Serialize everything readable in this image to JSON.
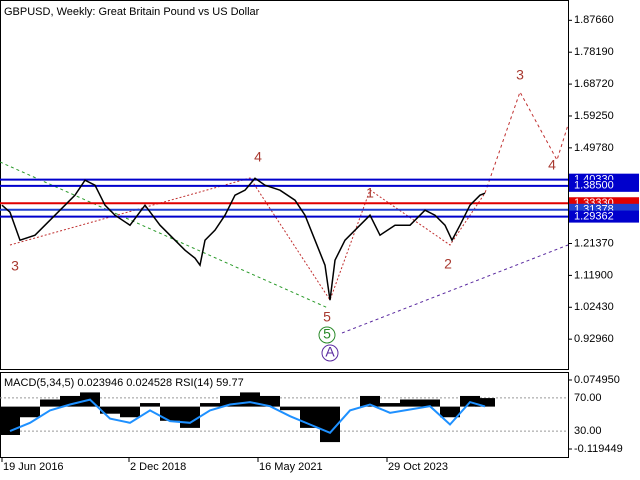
{
  "chart_data": [
    {
      "type": "line",
      "title": "GBPUSD, Weekly:  Great Britain Pound vs US Dollar",
      "color": "#000000",
      "x": [
        2,
        10,
        20,
        35,
        45,
        55,
        65,
        75,
        85,
        95,
        105,
        115,
        130,
        145,
        160,
        175,
        185,
        195,
        200,
        205,
        215,
        225,
        235,
        245,
        255,
        265,
        280,
        295,
        305,
        315,
        325,
        330,
        335,
        345,
        355,
        370,
        380,
        395,
        410,
        425,
        435,
        445,
        452,
        460,
        470,
        480,
        485
      ],
      "values": [
        1.3274,
        1.3066,
        1.2235,
        1.2383,
        1.268,
        1.2977,
        1.3274,
        1.3571,
        1.4016,
        1.3868,
        1.3274,
        1.2977,
        1.268,
        1.3274,
        1.268,
        1.2235,
        1.1938,
        1.17,
        1.1493,
        1.2235,
        1.2532,
        1.2977,
        1.3571,
        1.3719,
        1.4075,
        1.3868,
        1.3719,
        1.3422,
        1.2977,
        1.2235,
        1.1493,
        1.0454,
        1.1641,
        1.2235,
        1.2532,
        1.2977,
        1.2383,
        1.268,
        1.268,
        1.3125,
        1.2977,
        1.268,
        1.2235,
        1.268,
        1.3274,
        1.3571,
        1.363
      ],
      "xlim": [
        0,
        568
      ],
      "ylim": [
        0.838,
        1.931
      ],
      "yticks": [
        {
          "value": 1.8766,
          "label": "1.87660"
        },
        {
          "value": 1.7819,
          "label": "1.78190"
        },
        {
          "value": 1.6872,
          "label": "1.68720"
        },
        {
          "value": 1.5925,
          "label": "1.59250"
        },
        {
          "value": 1.4978,
          "label": "1.49780"
        },
        {
          "value": 1.2137,
          "label": "1.21370"
        },
        {
          "value": 1.119,
          "label": "1.11900"
        },
        {
          "value": 1.0243,
          "label": "1.02430"
        },
        {
          "value": 0.9296,
          "label": "0.92960"
        }
      ],
      "levels": [
        {
          "value": 1.4033,
          "label": "1.40330",
          "color": "#0000cc"
        },
        {
          "value": 1.385,
          "label": "1.38500",
          "color": "#0000cc"
        },
        {
          "value": 1.3333,
          "label": "1.33330",
          "color": "#e00000"
        },
        {
          "value": 1.31378,
          "label": "1.31378",
          "color": "#2040d0"
        },
        {
          "value": 1.29362,
          "label": "1.29362",
          "color": "#0000cc"
        }
      ],
      "annotations": [
        {
          "text": "3",
          "color": "#a83a30"
        },
        {
          "text": "4",
          "color": "#a83a30"
        },
        {
          "text": "1",
          "color": "#a83a30"
        },
        {
          "text": "2",
          "color": "#a83a30"
        },
        {
          "text": "5",
          "color": "#a83a30"
        },
        {
          "text": "5",
          "color": "#2a8a2a"
        },
        {
          "text": "A",
          "color": "#5a2aa0"
        },
        {
          "text": "3",
          "color": "#a83a30"
        },
        {
          "text": "4",
          "color": "#a83a30"
        }
      ]
    },
    {
      "type": "macd",
      "title": "MACD(5,34,5) 0.023946 0.024528 RSI(14) 59.77",
      "x": [
        10,
        30,
        50,
        70,
        90,
        110,
        130,
        150,
        170,
        190,
        210,
        230,
        250,
        270,
        290,
        310,
        330,
        350,
        370,
        390,
        410,
        430,
        450,
        470,
        485
      ],
      "macd": {
        "color": "#000000",
        "axis": "y2",
        "values": [
          -0.08,
          -0.03,
          0.02,
          0.03,
          0.04,
          -0.02,
          -0.03,
          0.01,
          -0.04,
          -0.06,
          0.01,
          0.03,
          0.04,
          0.03,
          -0.01,
          -0.06,
          -0.1,
          0.0,
          0.03,
          0.01,
          0.02,
          0.02,
          -0.03,
          0.03,
          0.024
        ]
      },
      "rsi": {
        "color": "#1e90ff",
        "values": [
          30,
          40,
          55,
          62,
          68,
          45,
          40,
          55,
          42,
          40,
          55,
          62,
          65,
          60,
          48,
          38,
          28,
          55,
          62,
          52,
          56,
          60,
          38,
          65,
          59.77
        ]
      },
      "xlim": [
        0,
        568
      ],
      "ylim": [
        0,
        100
      ],
      "yticks": [
        {
          "value": 70,
          "label": "70.00"
        },
        {
          "value": 30,
          "label": "30.00"
        }
      ],
      "y2lim": [
        -0.1392,
        0.0947
      ],
      "y2ticks": [
        {
          "value": 0.07495,
          "label": "0.074950"
        },
        {
          "value": -0.119449,
          "label": "-0.119449"
        }
      ],
      "xticks": [
        {
          "value": 2,
          "label": "19 Jun 2016"
        },
        {
          "value": 129,
          "label": "2 Dec 2018"
        },
        {
          "value": 258,
          "label": "16 May 2021"
        },
        {
          "value": 387,
          "label": "29 Oct 2023"
        }
      ]
    }
  ]
}
